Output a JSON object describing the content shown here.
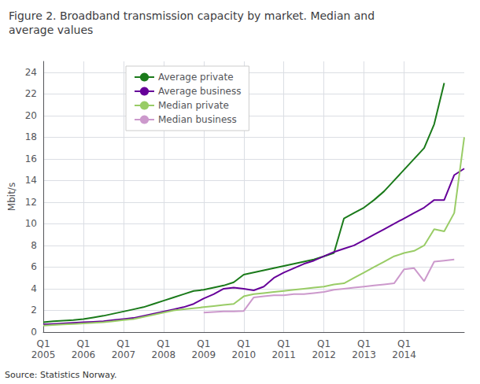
{
  "chart_data": {
    "type": "line",
    "title": "Figure 2. Broadband transmission capacity by market. Median and\naverage values",
    "ylabel": "Mbit/s",
    "source": "Source: Statistics Norway.",
    "categories": [
      "Q1\n2005",
      null,
      null,
      null,
      "Q1\n2006",
      null,
      null,
      null,
      "Q1\n2007",
      null,
      null,
      null,
      "Q1\n2008",
      null,
      null,
      null,
      "Q1\n2009",
      null,
      null,
      null,
      "Q1\n2010",
      null,
      null,
      null,
      "Q1\n2011",
      null,
      null,
      null,
      "Q1\n2012",
      null,
      null,
      null,
      "Q1\n2013",
      null,
      null,
      null,
      "Q1\n2014",
      null,
      null,
      null,
      null,
      null,
      null
    ],
    "ylim": [
      0,
      25
    ],
    "yticks": [
      0,
      2,
      4,
      6,
      8,
      10,
      12,
      14,
      16,
      18,
      20,
      22,
      24
    ],
    "grid": true,
    "legend": "upper left",
    "series": [
      {
        "name": "Average private",
        "color": "#1a7a1a",
        "values": [
          0.9,
          1.0,
          1.05,
          1.1,
          1.2,
          1.35,
          1.5,
          1.7,
          1.9,
          2.1,
          2.3,
          2.6,
          2.9,
          3.2,
          3.5,
          3.8,
          3.9,
          4.1,
          4.3,
          4.6,
          5.3,
          5.5,
          5.7,
          5.9,
          6.1,
          6.3,
          6.5,
          6.7,
          7.0,
          7.3,
          10.5,
          11.0,
          11.5,
          12.2,
          13.0,
          14.0,
          15.0,
          16.0,
          17.0,
          19.2,
          23.0,
          null,
          null
        ]
      },
      {
        "name": "Average business",
        "color": "#660099",
        "values": [
          0.7,
          0.75,
          0.8,
          0.85,
          0.9,
          0.95,
          1.0,
          1.1,
          1.2,
          1.3,
          1.5,
          1.7,
          1.9,
          2.1,
          2.3,
          2.6,
          3.1,
          3.5,
          4.0,
          4.1,
          4.0,
          3.85,
          4.2,
          5.0,
          5.5,
          5.9,
          6.3,
          6.6,
          7.0,
          7.4,
          7.7,
          8.0,
          8.5,
          9.0,
          9.5,
          10.0,
          10.5,
          11.0,
          11.5,
          12.2,
          12.2,
          14.5,
          15.1
        ]
      },
      {
        "name": "Median private",
        "color": "#99cc66",
        "values": [
          0.6,
          0.65,
          0.7,
          0.75,
          0.8,
          0.85,
          0.9,
          1.0,
          1.1,
          1.2,
          1.4,
          1.6,
          1.8,
          2.0,
          2.1,
          2.2,
          2.3,
          2.4,
          2.5,
          2.6,
          3.3,
          3.5,
          3.6,
          3.7,
          3.8,
          3.9,
          4.0,
          4.1,
          4.2,
          4.4,
          4.5,
          5.0,
          5.5,
          6.0,
          6.5,
          7.0,
          7.3,
          7.5,
          8.0,
          9.5,
          9.3,
          11.0,
          18.0
        ]
      },
      {
        "name": "Median business",
        "color": "#cc99cc",
        "values": [
          null,
          null,
          null,
          null,
          null,
          null,
          null,
          null,
          null,
          null,
          null,
          null,
          null,
          null,
          null,
          null,
          1.8,
          1.85,
          1.9,
          1.9,
          1.95,
          3.2,
          3.3,
          3.4,
          3.4,
          3.5,
          3.5,
          3.6,
          3.7,
          3.9,
          4.0,
          4.1,
          4.2,
          4.3,
          4.4,
          4.5,
          5.8,
          5.9,
          4.7,
          6.5,
          6.6,
          6.7,
          null
        ]
      }
    ]
  }
}
